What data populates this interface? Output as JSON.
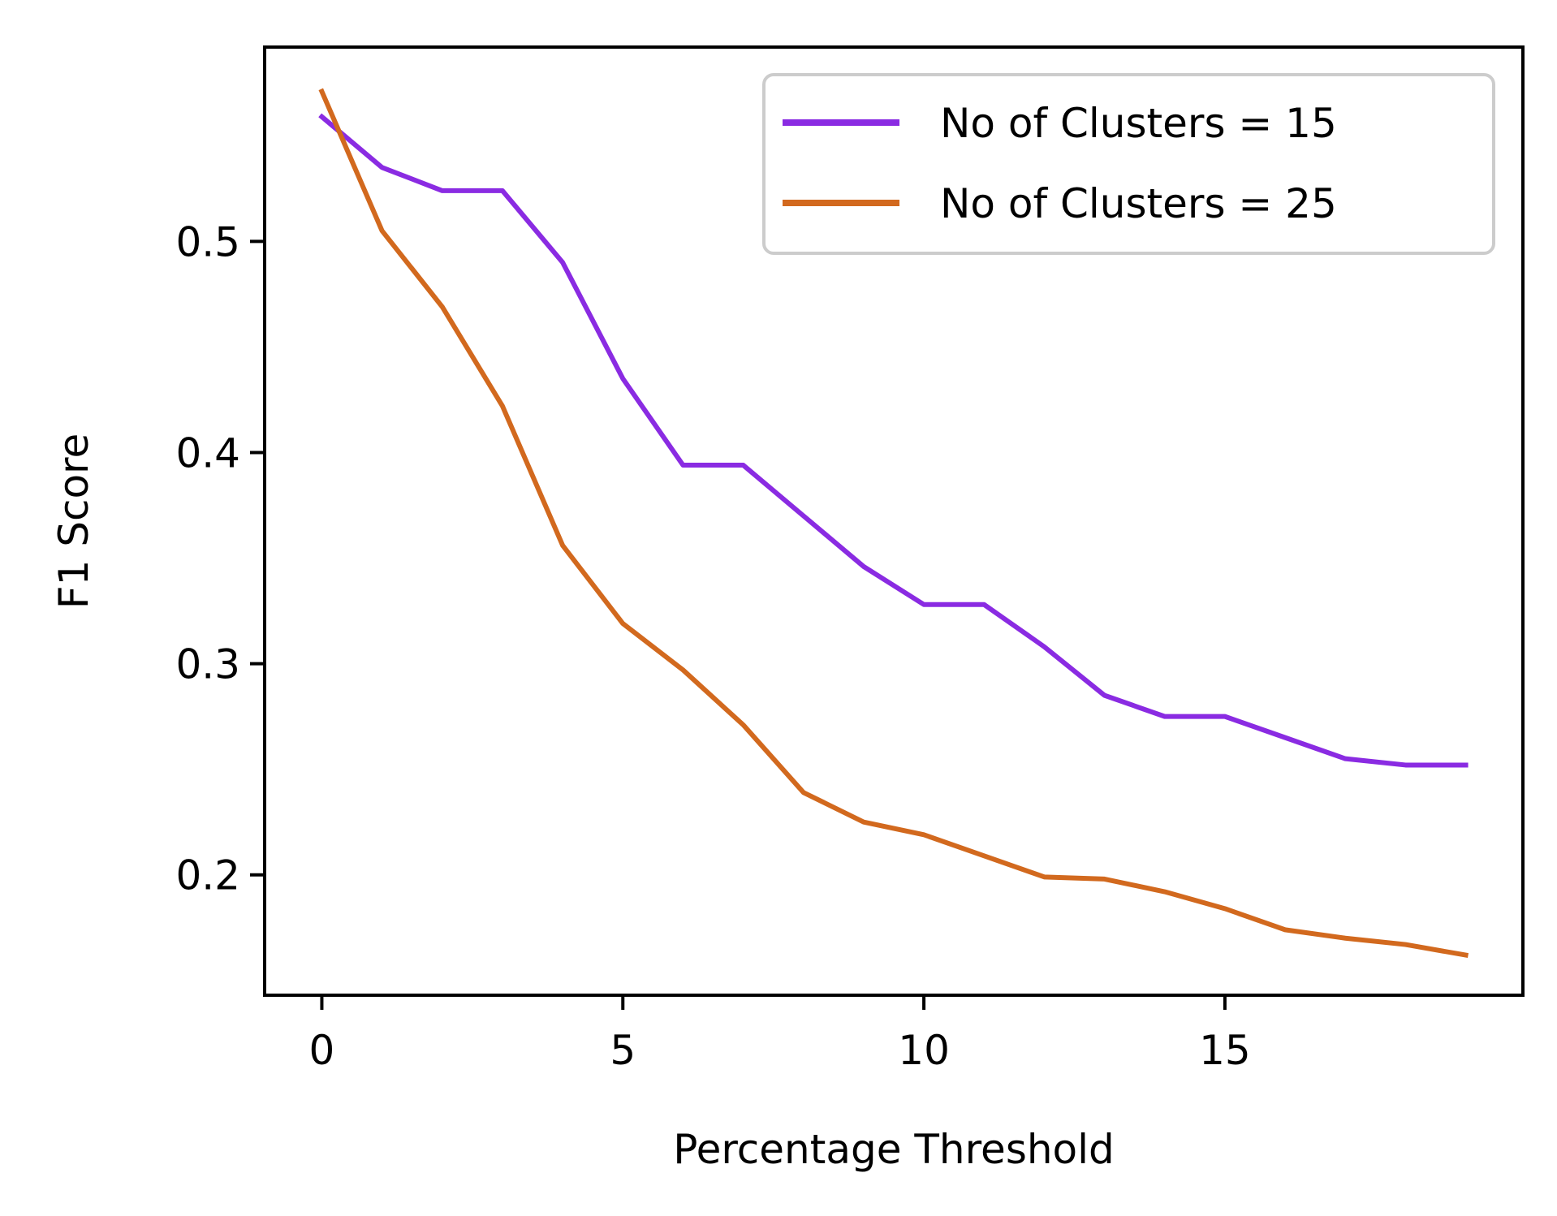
{
  "chart_data": {
    "type": "line",
    "title": "",
    "xlabel": "Percentage Threshold",
    "ylabel": "F1 Score",
    "xlim": [
      -0.95,
      19.95
    ],
    "ylim": [
      0.143,
      0.592
    ],
    "xticks": [
      0,
      5,
      10,
      15
    ],
    "xtick_labels": [
      "0",
      "5",
      "10",
      "15"
    ],
    "yticks": [
      0.2,
      0.3,
      0.4,
      0.5
    ],
    "ytick_labels": [
      "0.2",
      "0.3",
      "0.4",
      "0.5"
    ],
    "grid": false,
    "legend_position": "top-right",
    "x": [
      0,
      1,
      2,
      3,
      4,
      5,
      6,
      7,
      8,
      9,
      10,
      11,
      12,
      13,
      14,
      15,
      16,
      17,
      18,
      19
    ],
    "series": [
      {
        "name": "No of Clusters = 15",
        "color": "#8a2be2",
        "values": [
          0.559,
          0.535,
          0.524,
          0.524,
          0.49,
          0.435,
          0.394,
          0.394,
          0.37,
          0.346,
          0.328,
          0.328,
          0.308,
          0.285,
          0.275,
          0.275,
          0.265,
          0.255,
          0.252,
          0.252
        ]
      },
      {
        "name": "No of Clusters = 25",
        "color": "#d2691e",
        "values": [
          0.571,
          0.505,
          0.469,
          0.422,
          0.356,
          0.319,
          0.297,
          0.271,
          0.239,
          0.225,
          0.219,
          0.209,
          0.199,
          0.198,
          0.192,
          0.184,
          0.174,
          0.17,
          0.167,
          0.162
        ]
      }
    ]
  }
}
